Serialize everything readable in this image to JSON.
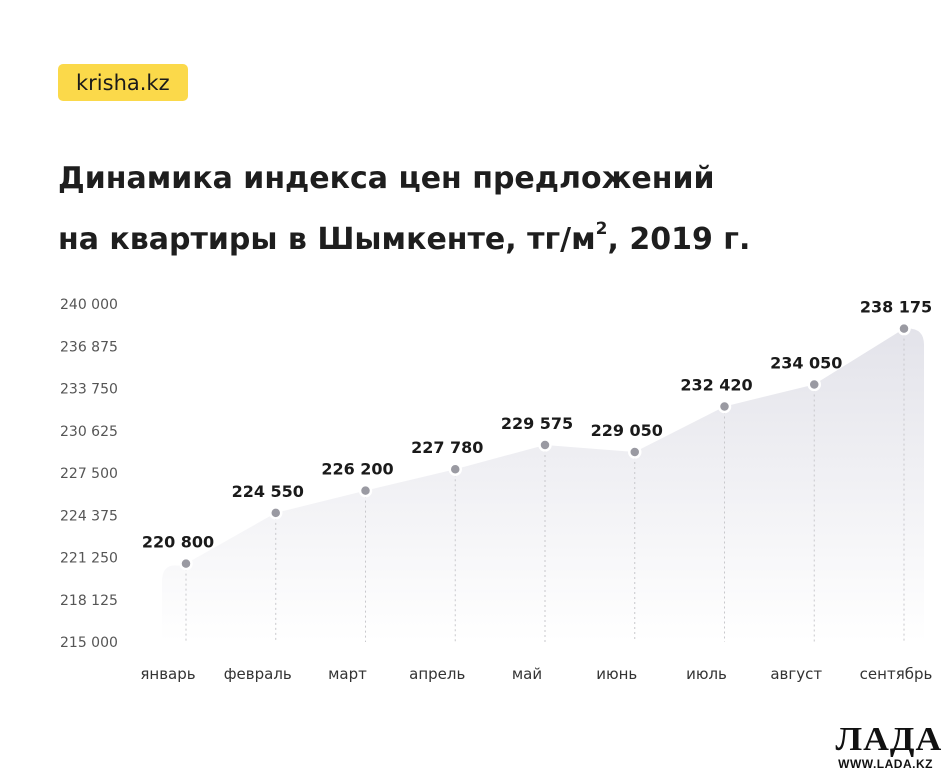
{
  "brand": {
    "label": "krisha.kz",
    "color": "#fbd94a"
  },
  "title_line1": "Динамика индекса цен предложений",
  "title_line2_pre": "на квартиры в Шымкенте, тг/м",
  "title_sup": "2",
  "title_line2_post": ", 2019 г.",
  "watermark": {
    "word": "ЛАДА",
    "url": "WWW.LADA.KZ"
  },
  "chart_data": {
    "type": "area",
    "categories": [
      "январь",
      "февраль",
      "март",
      "апрель",
      "май",
      "июнь",
      "июль",
      "август",
      "сентябрь"
    ],
    "values": [
      220800,
      224550,
      226200,
      227780,
      229575,
      229050,
      232420,
      234050,
      238175
    ],
    "value_labels": [
      "220 800",
      "224 550",
      "226 200",
      "227 780",
      "229 575",
      "229 050",
      "232 420",
      "234 050",
      "238 175"
    ],
    "ylim": [
      215000,
      240000
    ],
    "yticks": [
      215000,
      218125,
      221250,
      224375,
      227500,
      230625,
      233750,
      236875,
      240000
    ],
    "ytick_labels": [
      "215 000",
      "218 125",
      "221 250",
      "224 375",
      "227 500",
      "230 625",
      "233 750",
      "236 875",
      "240 000"
    ],
    "grid": false,
    "colors": {
      "fill_top": "#e3e3ea",
      "fill_bottom": "#ffffff",
      "marker": "#9a9aa2",
      "marker_ring": "#ffffff",
      "guide": "#c8c8cc"
    }
  }
}
